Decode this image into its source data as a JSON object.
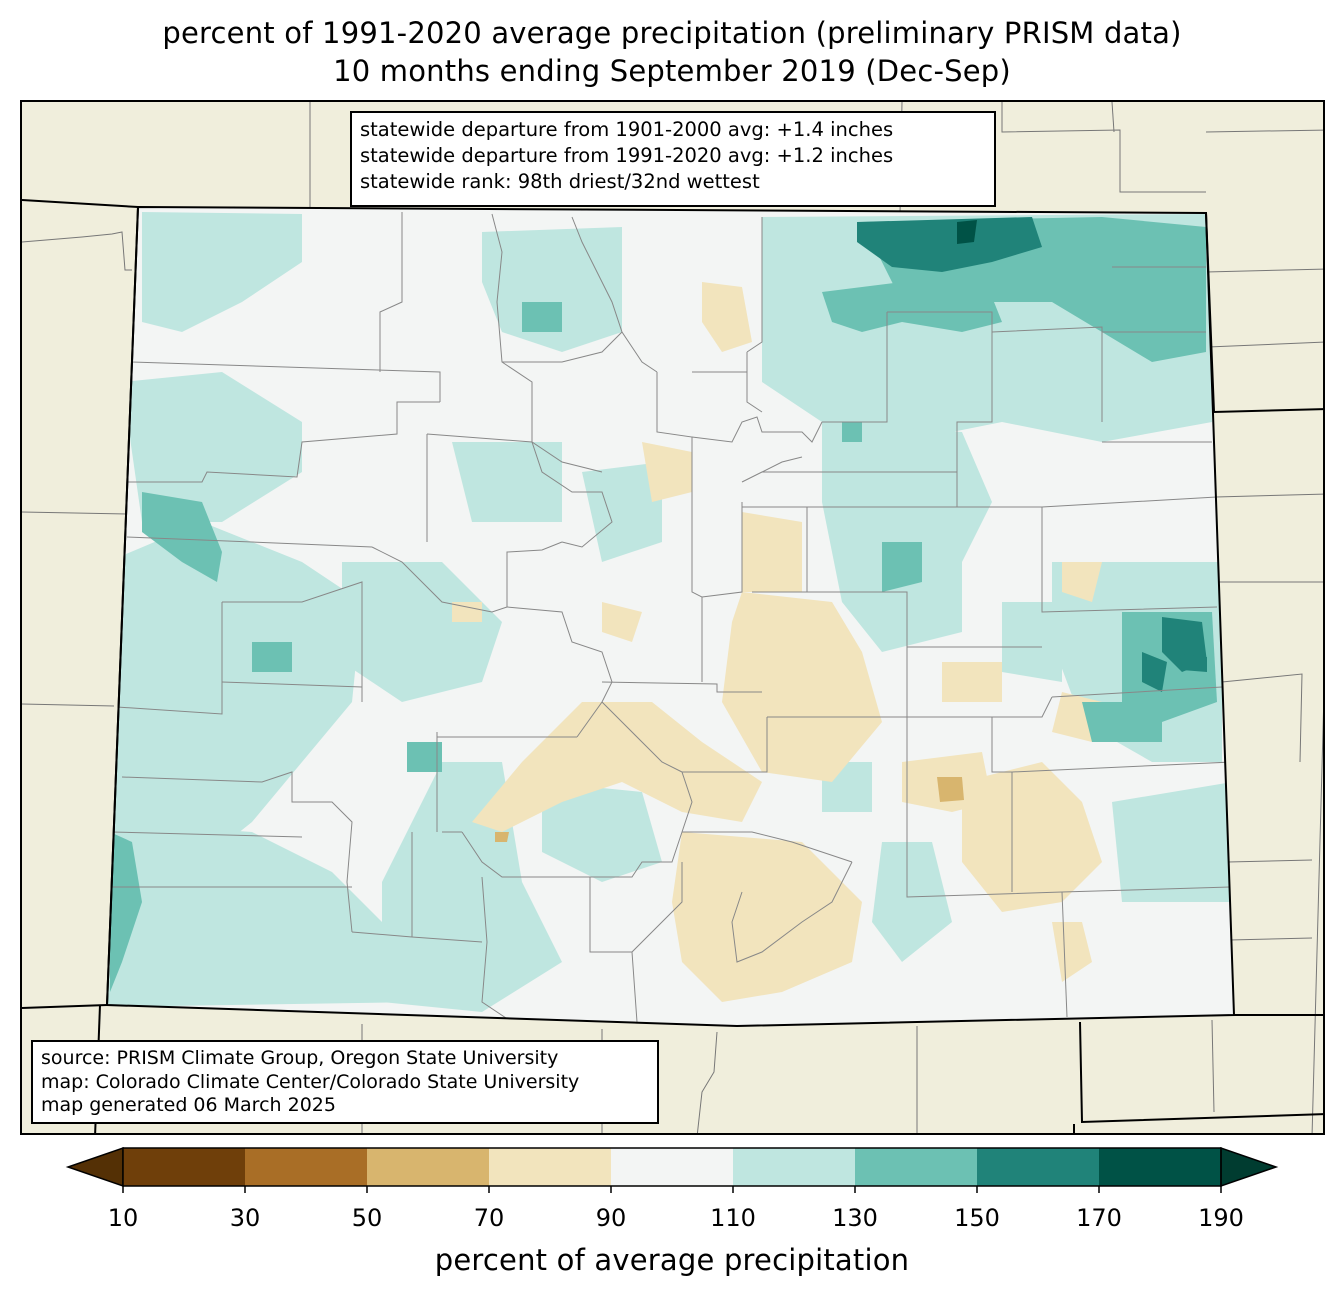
{
  "title": {
    "line1": "percent of 1991-2020 average precipitation (preliminary PRISM data)",
    "line2": "10 months ending September 2019 (Dec-Sep)"
  },
  "stats_box": {
    "line1": "statewide departure from 1901-2000 avg: +1.4 inches",
    "line2": "statewide departure from 1991-2020 avg: +1.2 inches",
    "line3": "statewide rank: 98th driest/32nd wettest"
  },
  "source_box": {
    "line1": "source: PRISM Climate Group, Oregon State University",
    "line2": "map: Colorado Climate Center/Colorado State University",
    "line3": "map generated 06 March 2025"
  },
  "colorbar": {
    "label": "percent of average precipitation",
    "ticks": [
      "10",
      "30",
      "50",
      "70",
      "90",
      "110",
      "130",
      "150",
      "170",
      "190"
    ],
    "bins": [
      {
        "range": "<10",
        "color": "#543005"
      },
      {
        "range": "10-30",
        "color": "#6f3f0a"
      },
      {
        "range": "30-50",
        "color": "#a96e26"
      },
      {
        "range": "50-70",
        "color": "#d8b56e"
      },
      {
        "range": "70-90",
        "color": "#f2e4bd"
      },
      {
        "range": "90-110",
        "color": "#f3f5f4"
      },
      {
        "range": "110-130",
        "color": "#bfe6e0"
      },
      {
        "range": "130-150",
        "color": "#6cc1b3"
      },
      {
        "range": "150-170",
        "color": "#208379"
      },
      {
        "range": "170-190",
        "color": "#005246"
      },
      {
        "range": ">190",
        "color": "#003c30"
      }
    ]
  },
  "map": {
    "background_color": "#f0eedc",
    "state": "Colorado"
  }
}
